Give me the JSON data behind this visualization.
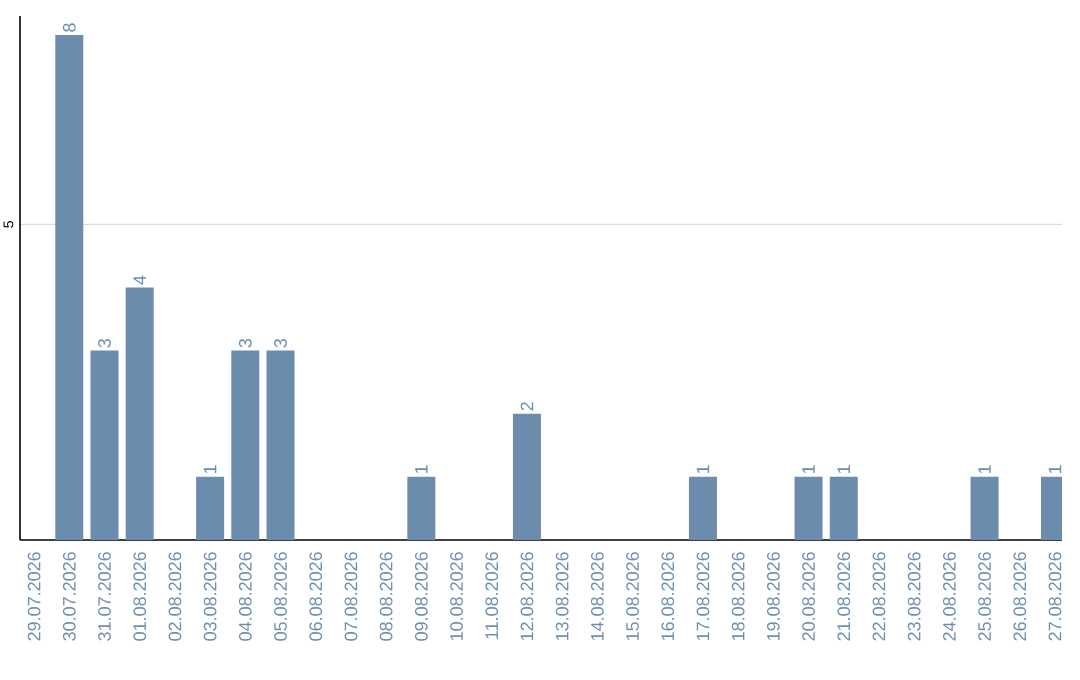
{
  "chart_data": {
    "type": "bar",
    "categories": [
      "29.07.2026",
      "30.07.2026",
      "31.07.2026",
      "01.08.2026",
      "02.08.2026",
      "03.08.2026",
      "04.08.2026",
      "05.08.2026",
      "06.08.2026",
      "07.08.2026",
      "08.08.2026",
      "09.08.2026",
      "10.08.2026",
      "11.08.2026",
      "12.08.2026",
      "13.08.2026",
      "14.08.2026",
      "15.08.2026",
      "16.08.2026",
      "17.08.2026",
      "18.08.2026",
      "19.08.2026",
      "20.08.2026",
      "21.08.2026",
      "22.08.2026",
      "23.08.2026",
      "24.08.2026",
      "25.08.2026",
      "26.08.2026",
      "27.08.2026"
    ],
    "values": [
      0,
      8,
      3,
      4,
      0,
      1,
      3,
      3,
      0,
      0,
      0,
      1,
      0,
      0,
      2,
      0,
      0,
      0,
      0,
      1,
      0,
      0,
      1,
      1,
      0,
      0,
      0,
      1,
      0,
      1
    ],
    "value_labels": [
      null,
      "8",
      "3",
      "4",
      null,
      "1",
      "3",
      "3",
      null,
      null,
      null,
      "1",
      null,
      null,
      "2",
      null,
      null,
      null,
      null,
      "1",
      null,
      null,
      "1",
      "1",
      null,
      null,
      null,
      "1",
      null,
      "1"
    ],
    "color": "#6b8cac",
    "ylim": [
      0,
      8.3
    ],
    "yticks": [
      5
    ],
    "grid": "y"
  }
}
